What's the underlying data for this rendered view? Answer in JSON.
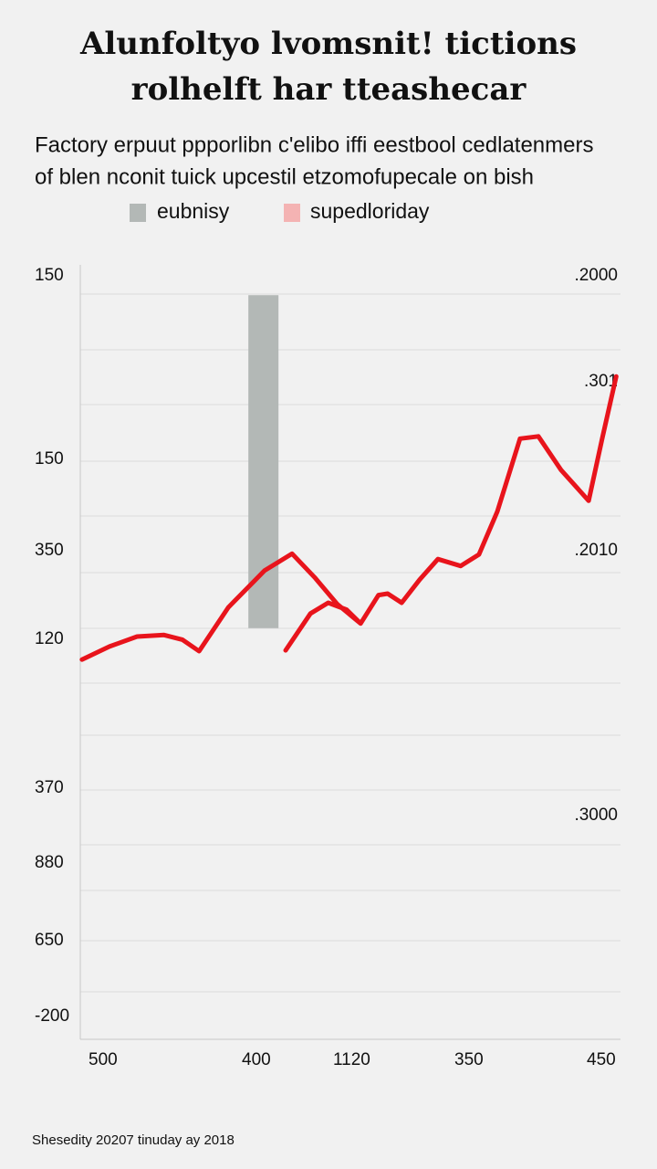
{
  "chart_data": {
    "type": "line",
    "title": [
      "Alunfoltyo lvomsnit! tictions",
      "rolhelft har tteashecar"
    ],
    "subtitle": [
      "Factory erpuut ppporlibn c'elibo iffi eestbool cedlatenmers",
      "of blen nconit tuick upcestil etzomofupecale on bish"
    ],
    "legend": [
      {
        "name": "eubnisy",
        "color": "#b3b8b6"
      },
      {
        "name": "supedloriday",
        "color": "#f4b3b3"
      }
    ],
    "y_axis_labels": [
      "150",
      "150",
      "350",
      "120",
      "370",
      "880",
      "650",
      "-200"
    ],
    "y2_axis_labels": [
      ".2000",
      ".301",
      ".2010",
      ".3000"
    ],
    "x_axis_labels": [
      "500",
      "400",
      "1120",
      "350",
      "450"
    ],
    "footnote": "Shesedity 20207 tinuday ay 2018",
    "xlim": [
      0,
      100
    ],
    "ylim": [
      0,
      100
    ],
    "bar": {
      "x": 33.9,
      "low": 53.6,
      "high": 97.0,
      "color": "#b3b8b6"
    },
    "line": {
      "color": "#e8141c",
      "x": [
        0.3,
        5.4,
        10.5,
        15.5,
        18.9,
        22.0,
        27.4,
        34.1,
        39.2,
        43.4,
        47.6,
        51.9,
        52,
        38.0,
        42.6,
        45.9,
        49.3,
        51.9,
        55.2,
        56.9,
        59.5,
        62.8,
        66.2,
        70.4,
        73.8,
        77.2,
        81.4,
        84.8,
        89.0,
        94.1,
        96.6,
        99.2
      ],
      "values": [
        49.5,
        51.2,
        52.5,
        52.7,
        52.1,
        50.6,
        56.3,
        61.1,
        63.3,
        60.2,
        56.7,
        54.2,
        null,
        50.7,
        55.5,
        56.9,
        56.0,
        54.2,
        57.9,
        58.1,
        56.9,
        59.9,
        62.6,
        61.7,
        63.2,
        68.8,
        78.3,
        78.6,
        74.2,
        70.2,
        78.3,
        86.4
      ]
    }
  }
}
